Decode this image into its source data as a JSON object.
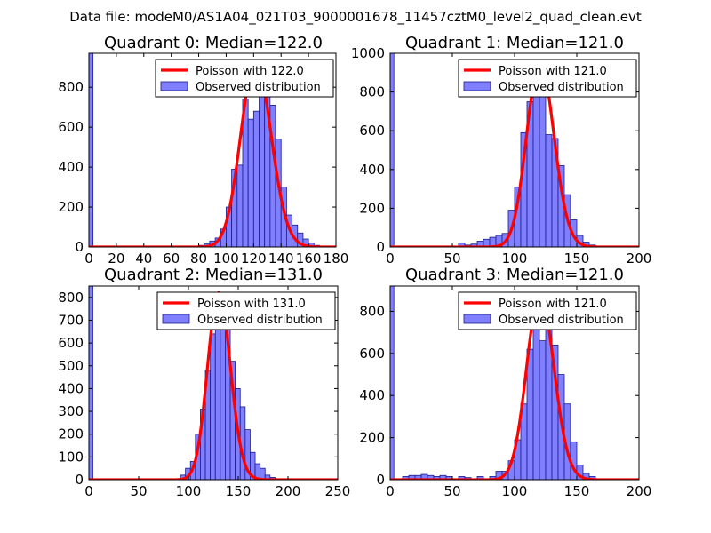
{
  "figure_title": "Data file: modeM0/AS1A04_021T03_9000001678_11457cztM0_level2_quad_clean.evt",
  "colors": {
    "poisson_line": "#ff0000",
    "bar_fill": "#7f7fff",
    "bar_edge": "#1a1a8c"
  },
  "chart_data": [
    {
      "type": "bar",
      "title": "Quadrant 0: Median=122.0",
      "xlim": [
        0,
        180
      ],
      "ylim": [
        0,
        970
      ],
      "xticks": [
        0,
        20,
        40,
        60,
        80,
        100,
        120,
        140,
        160,
        180
      ],
      "yticks": [
        0,
        200,
        400,
        600,
        800
      ],
      "legend": {
        "placement": "top-right",
        "line_label": "Poisson with 122.0",
        "bar_label": "Observed distribution"
      },
      "poisson_mean": 122.0,
      "poisson_peak": 930,
      "bins": [
        {
          "x0": 0,
          "x1": 3,
          "v": 970
        },
        {
          "x0": 72,
          "x1": 76,
          "v": 3
        },
        {
          "x0": 80,
          "x1": 84,
          "v": 8
        },
        {
          "x0": 84,
          "x1": 88,
          "v": 15
        },
        {
          "x0": 88,
          "x1": 92,
          "v": 30
        },
        {
          "x0": 92,
          "x1": 96,
          "v": 45
        },
        {
          "x0": 96,
          "x1": 100,
          "v": 90
        },
        {
          "x0": 100,
          "x1": 104,
          "v": 200
        },
        {
          "x0": 104,
          "x1": 108,
          "v": 390
        },
        {
          "x0": 108,
          "x1": 112,
          "v": 410
        },
        {
          "x0": 112,
          "x1": 116,
          "v": 740
        },
        {
          "x0": 116,
          "x1": 120,
          "v": 640
        },
        {
          "x0": 120,
          "x1": 124,
          "v": 680
        },
        {
          "x0": 124,
          "x1": 128,
          "v": 900
        },
        {
          "x0": 128,
          "x1": 132,
          "v": 780
        },
        {
          "x0": 132,
          "x1": 136,
          "v": 710
        },
        {
          "x0": 136,
          "x1": 140,
          "v": 540
        },
        {
          "x0": 140,
          "x1": 144,
          "v": 300
        },
        {
          "x0": 144,
          "x1": 148,
          "v": 160
        },
        {
          "x0": 148,
          "x1": 152,
          "v": 110
        },
        {
          "x0": 152,
          "x1": 156,
          "v": 70
        },
        {
          "x0": 156,
          "x1": 160,
          "v": 40
        },
        {
          "x0": 160,
          "x1": 164,
          "v": 20
        },
        {
          "x0": 164,
          "x1": 168,
          "v": 8
        }
      ]
    },
    {
      "type": "bar",
      "title": "Quadrant 1: Median=121.0",
      "xlim": [
        0,
        200
      ],
      "ylim": [
        0,
        1000
      ],
      "xticks": [
        0,
        50,
        100,
        150,
        200
      ],
      "yticks": [
        0,
        200,
        400,
        600,
        800,
        1000
      ],
      "legend": {
        "placement": "top-right",
        "line_label": "Poisson with 121.0",
        "bar_label": "Observed distribution"
      },
      "poisson_mean": 121.0,
      "poisson_peak": 950,
      "bins": [
        {
          "x0": 0,
          "x1": 3,
          "v": 1000
        },
        {
          "x0": 55,
          "x1": 60,
          "v": 20
        },
        {
          "x0": 60,
          "x1": 65,
          "v": 10
        },
        {
          "x0": 65,
          "x1": 70,
          "v": 15
        },
        {
          "x0": 70,
          "x1": 75,
          "v": 30
        },
        {
          "x0": 75,
          "x1": 80,
          "v": 40
        },
        {
          "x0": 80,
          "x1": 85,
          "v": 50
        },
        {
          "x0": 85,
          "x1": 90,
          "v": 60
        },
        {
          "x0": 90,
          "x1": 95,
          "v": 70
        },
        {
          "x0": 95,
          "x1": 100,
          "v": 190
        },
        {
          "x0": 100,
          "x1": 105,
          "v": 310
        },
        {
          "x0": 105,
          "x1": 110,
          "v": 590
        },
        {
          "x0": 110,
          "x1": 115,
          "v": 750
        },
        {
          "x0": 115,
          "x1": 120,
          "v": 780
        },
        {
          "x0": 120,
          "x1": 125,
          "v": 860
        },
        {
          "x0": 125,
          "x1": 130,
          "v": 580
        },
        {
          "x0": 130,
          "x1": 135,
          "v": 560
        },
        {
          "x0": 135,
          "x1": 140,
          "v": 420
        },
        {
          "x0": 140,
          "x1": 145,
          "v": 270
        },
        {
          "x0": 145,
          "x1": 150,
          "v": 140
        },
        {
          "x0": 150,
          "x1": 155,
          "v": 60
        },
        {
          "x0": 155,
          "x1": 160,
          "v": 25
        },
        {
          "x0": 160,
          "x1": 165,
          "v": 10
        }
      ]
    },
    {
      "type": "bar",
      "title": "Quadrant 2: Median=131.0",
      "xlim": [
        0,
        250
      ],
      "ylim": [
        0,
        850
      ],
      "xticks": [
        0,
        50,
        100,
        150,
        200,
        250
      ],
      "yticks": [
        0,
        100,
        200,
        300,
        400,
        500,
        600,
        700,
        800
      ],
      "legend": {
        "placement": "top-right",
        "line_label": "Poisson with 131.0",
        "bar_label": "Observed distribution"
      },
      "poisson_mean": 131.0,
      "poisson_peak": 820,
      "bins": [
        {
          "x0": 0,
          "x1": 4,
          "v": 850
        },
        {
          "x0": 92,
          "x1": 97,
          "v": 20
        },
        {
          "x0": 97,
          "x1": 102,
          "v": 50
        },
        {
          "x0": 102,
          "x1": 107,
          "v": 80
        },
        {
          "x0": 107,
          "x1": 112,
          "v": 200
        },
        {
          "x0": 112,
          "x1": 117,
          "v": 310
        },
        {
          "x0": 117,
          "x1": 122,
          "v": 480
        },
        {
          "x0": 122,
          "x1": 127,
          "v": 640
        },
        {
          "x0": 127,
          "x1": 132,
          "v": 800
        },
        {
          "x0": 132,
          "x1": 137,
          "v": 780
        },
        {
          "x0": 137,
          "x1": 142,
          "v": 700
        },
        {
          "x0": 142,
          "x1": 147,
          "v": 520
        },
        {
          "x0": 147,
          "x1": 152,
          "v": 400
        },
        {
          "x0": 152,
          "x1": 157,
          "v": 320
        },
        {
          "x0": 157,
          "x1": 162,
          "v": 220
        },
        {
          "x0": 162,
          "x1": 167,
          "v": 120
        },
        {
          "x0": 167,
          "x1": 172,
          "v": 70
        },
        {
          "x0": 172,
          "x1": 177,
          "v": 50
        },
        {
          "x0": 177,
          "x1": 182,
          "v": 20
        },
        {
          "x0": 182,
          "x1": 187,
          "v": 10
        }
      ]
    },
    {
      "type": "bar",
      "title": "Quadrant 3: Median=121.0",
      "xlim": [
        0,
        200
      ],
      "ylim": [
        0,
        920
      ],
      "xticks": [
        0,
        50,
        100,
        150,
        200
      ],
      "yticks": [
        0,
        200,
        400,
        600,
        800
      ],
      "legend": {
        "placement": "top-right",
        "line_label": "Poisson with 121.0",
        "bar_label": "Observed distribution"
      },
      "poisson_mean": 121.0,
      "poisson_peak": 880,
      "bins": [
        {
          "x0": 0,
          "x1": 3,
          "v": 920
        },
        {
          "x0": 10,
          "x1": 15,
          "v": 15
        },
        {
          "x0": 15,
          "x1": 20,
          "v": 20
        },
        {
          "x0": 20,
          "x1": 25,
          "v": 20
        },
        {
          "x0": 25,
          "x1": 30,
          "v": 25
        },
        {
          "x0": 30,
          "x1": 35,
          "v": 20
        },
        {
          "x0": 35,
          "x1": 40,
          "v": 15
        },
        {
          "x0": 40,
          "x1": 45,
          "v": 20
        },
        {
          "x0": 45,
          "x1": 50,
          "v": 15
        },
        {
          "x0": 55,
          "x1": 60,
          "v": 15
        },
        {
          "x0": 60,
          "x1": 65,
          "v": 10
        },
        {
          "x0": 70,
          "x1": 75,
          "v": 15
        },
        {
          "x0": 80,
          "x1": 85,
          "v": 15
        },
        {
          "x0": 85,
          "x1": 90,
          "v": 40
        },
        {
          "x0": 90,
          "x1": 95,
          "v": 40
        },
        {
          "x0": 95,
          "x1": 100,
          "v": 90
        },
        {
          "x0": 100,
          "x1": 105,
          "v": 190
        },
        {
          "x0": 105,
          "x1": 110,
          "v": 360
        },
        {
          "x0": 110,
          "x1": 115,
          "v": 620
        },
        {
          "x0": 115,
          "x1": 120,
          "v": 880
        },
        {
          "x0": 120,
          "x1": 125,
          "v": 660
        },
        {
          "x0": 125,
          "x1": 130,
          "v": 810
        },
        {
          "x0": 130,
          "x1": 135,
          "v": 640
        },
        {
          "x0": 135,
          "x1": 140,
          "v": 500
        },
        {
          "x0": 140,
          "x1": 145,
          "v": 360
        },
        {
          "x0": 145,
          "x1": 150,
          "v": 180
        },
        {
          "x0": 150,
          "x1": 155,
          "v": 70
        },
        {
          "x0": 155,
          "x1": 160,
          "v": 30
        },
        {
          "x0": 160,
          "x1": 165,
          "v": 15
        }
      ]
    }
  ]
}
